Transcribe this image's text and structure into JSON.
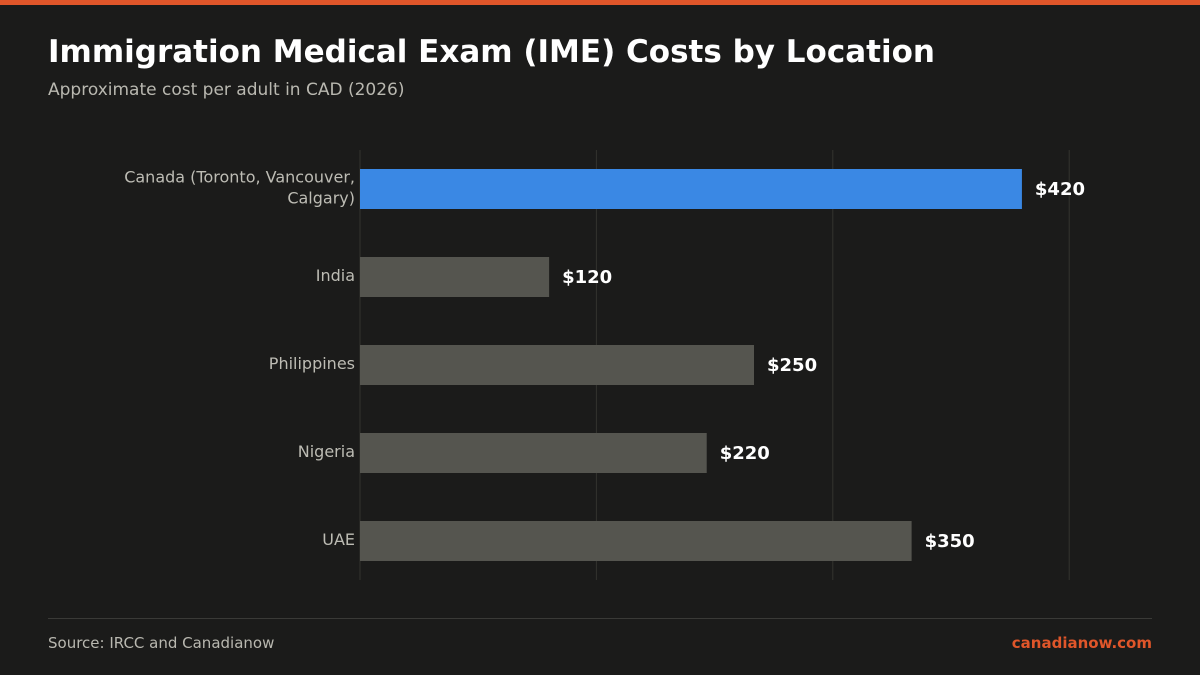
{
  "colors": {
    "accent": "#e0562a",
    "highlight_bar": "#3a88e4",
    "default_bar": "#55554f",
    "background": "#1b1b1a",
    "grid": "#33332f"
  },
  "header": {
    "title": "Immigration Medical Exam (IME) Costs by Location",
    "subtitle": "Approximate cost per adult in CAD (2026)"
  },
  "footer": {
    "source": "Source: IRCC and Canadianow",
    "brand": "canadianow.com"
  },
  "chart_data": {
    "type": "bar",
    "orientation": "horizontal",
    "title": "Immigration Medical Exam (IME) Costs by Location",
    "subtitle": "Approximate cost per adult in CAD (2026)",
    "categories": [
      [
        "Canada (Toronto, Vancouver,",
        "Calgary)"
      ],
      [
        "India"
      ],
      [
        "Philippines"
      ],
      [
        "Nigeria"
      ],
      [
        "UAE"
      ]
    ],
    "values": [
      420,
      120,
      250,
      220,
      350
    ],
    "value_labels": [
      "$420",
      "$120",
      "$250",
      "$220",
      "$350"
    ],
    "highlighted_index": 0,
    "xlim": [
      0,
      450
    ],
    "gridlines": [
      0,
      150,
      300,
      450
    ],
    "grid": true,
    "xlabel": "",
    "ylabel": ""
  }
}
